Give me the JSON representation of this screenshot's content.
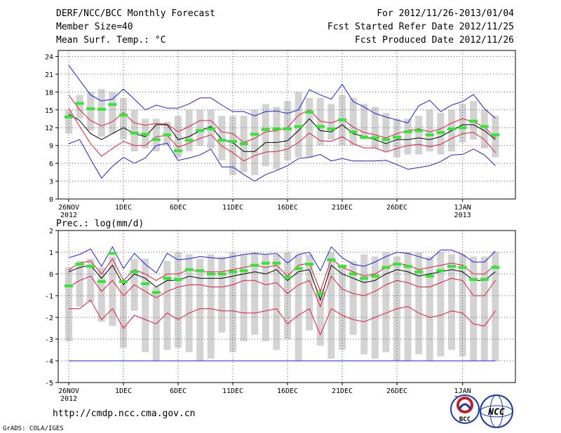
{
  "header": {
    "title": "DERF/NCC/BCC Monthly Forecast",
    "member_size": "Member Size=40",
    "variable": "Mean Surf. Temp.: °C",
    "forecast_period": "For 2012/11/26-2013/01/04",
    "started_refer": "Fcst Started Refer Date 2012/11/25",
    "produced": "Fcst Produced Date 2012/11/26"
  },
  "footer": {
    "url": "http://cmdp.ncc.cma.gov.cn",
    "credit": "GrADS: COLA/IGES",
    "logo_bcc": "BCC",
    "logo_ncc": "NCC"
  },
  "colors": {
    "box": "#d3d3d3",
    "median": "#33e633",
    "mean": "#000000",
    "sigma": "#e6193c",
    "extreme": "#1e1ee6",
    "grid": "#555555"
  },
  "chart_data": [
    {
      "type": "box-plume",
      "title": "Mean Surf. Temp.: °C",
      "ylim": [
        0,
        25
      ],
      "yticks": [
        0,
        3,
        6,
        9,
        12,
        15,
        18,
        21,
        24
      ],
      "x_tick_labels": [
        {
          "day": 0,
          "label": "26NOV",
          "year": "2012"
        },
        {
          "day": 5,
          "label": "1DEC"
        },
        {
          "day": 10,
          "label": "6DEC"
        },
        {
          "day": 15,
          "label": "11DEC"
        },
        {
          "day": 20,
          "label": "16DEC"
        },
        {
          "day": 25,
          "label": "21DEC"
        },
        {
          "day": 30,
          "label": "26DEC"
        },
        {
          "day": 36,
          "label": "1JAN",
          "year": "2013"
        }
      ],
      "days": [
        0,
        1,
        2,
        3,
        4,
        5,
        6,
        7,
        8,
        9,
        10,
        11,
        12,
        13,
        14,
        15,
        16,
        17,
        18,
        19,
        20,
        21,
        22,
        23,
        24,
        25,
        26,
        27,
        28,
        29,
        30,
        31,
        32,
        33,
        34,
        35,
        36,
        37,
        38,
        39
      ],
      "box_low": [
        11.0,
        13.5,
        11.5,
        10.5,
        11.0,
        10.0,
        8.0,
        8.5,
        8.0,
        9.0,
        7.0,
        8.0,
        9.0,
        8.5,
        6.5,
        4.0,
        4.5,
        4.0,
        5.5,
        5.0,
        6.5,
        7.0,
        7.0,
        9.0,
        10.0,
        9.0,
        9.0,
        10.0,
        8.5,
        8.0,
        7.0,
        7.5,
        7.5,
        8.0,
        7.5,
        8.0,
        9.5,
        10.0,
        8.5,
        7.0
      ],
      "box_high": [
        15.0,
        17.5,
        18.0,
        18.5,
        18.0,
        17.0,
        15.0,
        13.5,
        13.5,
        13.0,
        14.0,
        15.0,
        15.0,
        15.0,
        14.0,
        14.0,
        14.0,
        15.0,
        16.0,
        15.5,
        16.5,
        18.0,
        17.0,
        17.0,
        16.0,
        17.5,
        17.0,
        16.0,
        15.5,
        14.5,
        13.5,
        13.5,
        14.0,
        15.0,
        14.5,
        15.0,
        16.0,
        16.5,
        15.0,
        14.0
      ],
      "median": [
        13.8,
        16.1,
        15.2,
        15.1,
        15.9,
        14.1,
        11.1,
        10.9,
        10.0,
        10.8,
        8.1,
        9.9,
        11.5,
        11.8,
        9.9,
        9.7,
        9.3,
        10.9,
        11.7,
        11.8,
        11.8,
        12.2,
        14.6,
        12.2,
        11.8,
        13.3,
        11.3,
        10.4,
        10.3,
        10.0,
        10.4,
        11.3,
        11.5,
        10.8,
        11.2,
        11.8,
        12.0,
        13.1,
        12.2,
        10.8
      ],
      "series": [
        {
          "name": "mean",
          "values": [
            14.3,
            13.2,
            11.0,
            10.0,
            11.0,
            12.0,
            11.0,
            10.5,
            12.5,
            12.5,
            10.0,
            10.5,
            11.5,
            12.2,
            10.0,
            9.5,
            8.0,
            8.0,
            9.5,
            9.5,
            9.8,
            11.5,
            13.5,
            11.5,
            11.3,
            12.5,
            11.0,
            10.5,
            10.0,
            9.3,
            10.0,
            10.0,
            10.3,
            10.0,
            10.5,
            11.5,
            12.5,
            12.5,
            11.5,
            10.0
          ]
        },
        {
          "name": "plus_sigma",
          "values": [
            17.5,
            15.0,
            13.2,
            12.3,
            13.0,
            14.5,
            12.8,
            12.4,
            12.7,
            12.6,
            11.3,
            12.2,
            13.2,
            13.2,
            11.3,
            11.0,
            9.5,
            10.2,
            11.3,
            11.5,
            12.0,
            14.1,
            15.0,
            13.1,
            12.8,
            13.5,
            12.1,
            11.2,
            10.8,
            10.3,
            11.0,
            11.5,
            11.8,
            11.3,
            11.8,
            12.8,
            13.5,
            13.0,
            12.1,
            10.3
          ]
        },
        {
          "name": "minus_sigma",
          "values": [
            15.3,
            12.2,
            9.3,
            7.2,
            8.5,
            9.7,
            9.0,
            9.0,
            10.5,
            10.7,
            8.7,
            9.4,
            10.2,
            10.8,
            8.9,
            7.8,
            6.4,
            7.3,
            7.9,
            8.0,
            8.4,
            9.5,
            11.1,
            9.8,
            9.7,
            10.5,
            9.3,
            8.6,
            8.6,
            7.9,
            8.5,
            9.0,
            9.2,
            8.8,
            9.2,
            10.2,
            11.0,
            11.2,
            10.0,
            7.8
          ]
        },
        {
          "name": "max",
          "values": [
            22.5,
            20.0,
            17.5,
            16.5,
            16.8,
            18.5,
            16.8,
            15.0,
            15.8,
            15.3,
            15.3,
            16.0,
            17.0,
            17.0,
            15.8,
            14.7,
            14.7,
            14.0,
            14.7,
            14.8,
            14.4,
            15.0,
            18.4,
            17.5,
            16.8,
            19.3,
            16.4,
            15.5,
            14.4,
            13.8,
            13.3,
            12.8,
            15.7,
            16.6,
            14.7,
            15.8,
            16.4,
            17.6,
            15.2,
            13.6
          ]
        },
        {
          "name": "min",
          "values": [
            9.3,
            10.0,
            6.7,
            3.5,
            5.5,
            7.0,
            6.0,
            6.9,
            9.0,
            9.4,
            6.5,
            6.9,
            7.4,
            8.4,
            5.4,
            5.4,
            4.1,
            3.0,
            4.1,
            4.8,
            5.6,
            6.8,
            7.0,
            7.5,
            6.4,
            6.8,
            6.4,
            6.4,
            6.4,
            6.5,
            5.8,
            5.0,
            5.3,
            5.6,
            6.3,
            7.4,
            7.5,
            8.4,
            7.4,
            5.6
          ]
        }
      ]
    },
    {
      "type": "box-plume",
      "title": "Prec.: log(mm/d)",
      "ylim": [
        -5,
        2
      ],
      "yticks": [
        -5,
        -4,
        -3,
        -2,
        -1,
        0,
        1,
        2
      ],
      "x_tick_labels": [
        {
          "day": 0,
          "label": "26NOV",
          "year": "2012"
        },
        {
          "day": 5,
          "label": "1DEC"
        },
        {
          "day": 10,
          "label": "6DEC"
        },
        {
          "day": 15,
          "label": "11DEC"
        },
        {
          "day": 20,
          "label": "16DEC"
        },
        {
          "day": 25,
          "label": "21DEC"
        },
        {
          "day": 30,
          "label": "26DEC"
        },
        {
          "day": 36,
          "label": "1JAN",
          "year": "2013"
        }
      ],
      "days": [
        0,
        1,
        2,
        3,
        4,
        5,
        6,
        7,
        8,
        9,
        10,
        11,
        12,
        13,
        14,
        15,
        16,
        17,
        18,
        19,
        20,
        21,
        22,
        23,
        24,
        25,
        26,
        27,
        28,
        29,
        30,
        31,
        32,
        33,
        34,
        35,
        36,
        37,
        38,
        39
      ],
      "box_low": [
        -3.1,
        -1.5,
        -1.3,
        -2.2,
        -2.4,
        -3.4,
        -1.7,
        -3.6,
        -4.0,
        -3.5,
        -3.4,
        -3.6,
        -4.0,
        -3.9,
        -2.7,
        -3.6,
        -3.1,
        -2.8,
        -3.1,
        -3.5,
        -3.0,
        -4.0,
        -2.6,
        -3.3,
        -3.9,
        -3.5,
        -2.8,
        -3.7,
        -3.9,
        -3.6,
        -4.0,
        -4.0,
        -3.7,
        -4.0,
        -3.8,
        -3.5,
        -3.8,
        -4.0,
        -4.0,
        -4.0
      ],
      "box_high": [
        0.3,
        0.6,
        0.7,
        0.3,
        0.8,
        -0.5,
        0.7,
        0.7,
        -0.6,
        0.6,
        1.0,
        0.9,
        0.7,
        0.9,
        0.8,
        1.0,
        0.9,
        1.0,
        0.9,
        0.9,
        1.0,
        0.9,
        0.9,
        -0.7,
        1.0,
        0.4,
        0.6,
        0.9,
        0.8,
        1.0,
        0.8,
        1.0,
        1.0,
        0.8,
        1.0,
        0.9,
        0.9,
        0.8,
        0.8,
        1.0
      ],
      "median": [
        -0.55,
        0.45,
        0.35,
        -0.35,
        0.95,
        -0.35,
        0.1,
        -0.45,
        -0.85,
        -0.2,
        -0.25,
        0.2,
        0.15,
        0.0,
        0.0,
        0.1,
        0.15,
        0.4,
        0.5,
        0.5,
        -0.15,
        0.25,
        0.45,
        -0.9,
        0.65,
        0.35,
        0.0,
        -0.2,
        -0.1,
        0.3,
        0.45,
        0.35,
        0.1,
        -0.1,
        0.15,
        0.35,
        0.3,
        -0.25,
        -0.25,
        0.3
      ],
      "series": [
        {
          "name": "mean",
          "values": [
            0.1,
            0.3,
            0.4,
            -0.2,
            0.4,
            -0.5,
            0.0,
            -0.2,
            -0.6,
            -0.3,
            -0.3,
            -0.1,
            -0.2,
            -0.2,
            -0.2,
            -0.1,
            0.0,
            0.1,
            0.0,
            0.2,
            -0.3,
            0.1,
            0.2,
            -1.2,
            0.4,
            0.0,
            -0.2,
            -0.4,
            -0.3,
            0.0,
            0.2,
            0.1,
            -0.1,
            0.0,
            0.1,
            0.2,
            0.1,
            -0.3,
            -0.3,
            0.1
          ]
        },
        {
          "name": "plus_sigma",
          "values": [
            0.2,
            0.5,
            0.6,
            0.0,
            0.7,
            -0.3,
            0.2,
            0.0,
            -0.3,
            0.0,
            0.0,
            0.2,
            0.1,
            0.1,
            0.1,
            0.2,
            0.3,
            0.4,
            0.3,
            0.4,
            -0.1,
            0.4,
            0.5,
            -0.8,
            0.7,
            0.3,
            0.1,
            -0.1,
            0.0,
            0.3,
            0.5,
            0.4,
            0.2,
            0.3,
            0.4,
            0.5,
            0.4,
            0.0,
            0.0,
            0.4
          ]
        },
        {
          "name": "minus_sigma",
          "values": [
            -0.6,
            -0.3,
            -0.1,
            -0.8,
            -0.3,
            -1.0,
            -0.5,
            -0.8,
            -1.1,
            -0.8,
            -0.6,
            -0.5,
            -0.5,
            -0.6,
            -0.6,
            -0.5,
            -0.3,
            -0.3,
            -0.5,
            -0.4,
            -0.9,
            -0.5,
            -0.3,
            -1.5,
            -0.1,
            -0.7,
            -0.9,
            -1.0,
            -0.8,
            -0.5,
            -0.3,
            -0.4,
            -0.6,
            -0.6,
            -0.4,
            -0.2,
            -0.3,
            -1.0,
            -1.0,
            -0.3
          ]
        },
        {
          "name": "minus_2sigma",
          "values": [
            -1.6,
            -1.6,
            -1.2,
            -2.1,
            -1.6,
            -2.5,
            -1.9,
            -2.1,
            -2.3,
            -1.8,
            -2.1,
            -1.8,
            -1.6,
            -1.6,
            -1.7,
            -1.7,
            -1.8,
            -1.8,
            -1.7,
            -1.6,
            -2.3,
            -1.9,
            -1.6,
            -2.8,
            -1.6,
            -1.9,
            -2.1,
            -2.2,
            -2.0,
            -1.8,
            -1.6,
            -1.5,
            -1.8,
            -2.0,
            -1.9,
            -1.7,
            -1.8,
            -2.3,
            -2.4,
            -1.7
          ]
        },
        {
          "name": "max",
          "values": [
            0.75,
            0.9,
            1.15,
            0.35,
            1.25,
            0.25,
            0.95,
            0.45,
            0.05,
            0.95,
            0.65,
            0.7,
            0.8,
            0.75,
            0.7,
            0.8,
            0.9,
            0.95,
            0.9,
            0.95,
            0.5,
            0.9,
            1.0,
            0.15,
            1.25,
            0.75,
            0.45,
            0.35,
            0.55,
            0.8,
            1.0,
            0.95,
            0.8,
            0.65,
            1.1,
            1.1,
            0.9,
            0.55,
            0.55,
            1.05
          ]
        },
        {
          "name": "min",
          "values": [
            -4,
            -4,
            -4,
            -4,
            -4,
            -4,
            -4,
            -4,
            -4,
            -4,
            -4,
            -4,
            -4,
            -4,
            -4,
            -4,
            -4,
            -4,
            -4,
            -4,
            -4,
            -4,
            -4,
            -4,
            -4,
            -4,
            -4,
            -4,
            -4,
            -4,
            -4,
            -4,
            -4,
            -4,
            -4,
            -4,
            -4,
            -4,
            -4,
            -4
          ]
        }
      ]
    }
  ]
}
